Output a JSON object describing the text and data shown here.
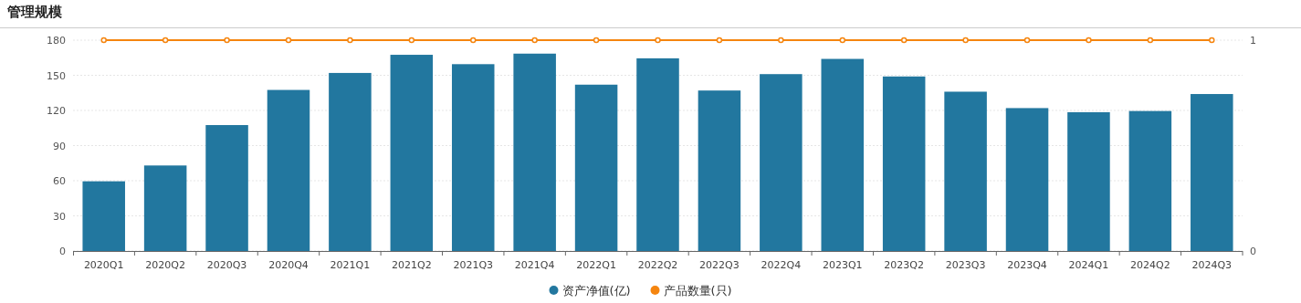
{
  "chart_data": {
    "type": "bar",
    "title": "管理规模",
    "categories": [
      "2020Q1",
      "2020Q2",
      "2020Q3",
      "2020Q4",
      "2021Q1",
      "2021Q2",
      "2021Q3",
      "2021Q4",
      "2022Q1",
      "2022Q2",
      "2022Q3",
      "2022Q4",
      "2023Q1",
      "2023Q2",
      "2023Q3",
      "2023Q4",
      "2024Q1",
      "2024Q2",
      "2024Q3"
    ],
    "series": [
      {
        "name": "资产净值(亿)",
        "color": "#22779f",
        "values": [
          59.5,
          73,
          107.5,
          137.5,
          152,
          167.5,
          159.5,
          168.5,
          142,
          164.5,
          137,
          151,
          164,
          149,
          136,
          122,
          118.5,
          119.5,
          134
        ]
      },
      {
        "name": "产品数量(只)",
        "type": "line",
        "axis": "y2",
        "color": "#f5850f",
        "marker": "circle",
        "values": [
          1,
          1,
          1,
          1,
          1,
          1,
          1,
          1,
          1,
          1,
          1,
          1,
          1,
          1,
          1,
          1,
          1,
          1,
          1
        ]
      }
    ],
    "ylim": [
      0,
      180
    ],
    "yticks": [
      0,
      30,
      60,
      90,
      120,
      150,
      180
    ],
    "y2lim": [
      0,
      1
    ],
    "y2ticks": [
      0,
      1
    ],
    "grid": "y",
    "legend": "bottom"
  }
}
